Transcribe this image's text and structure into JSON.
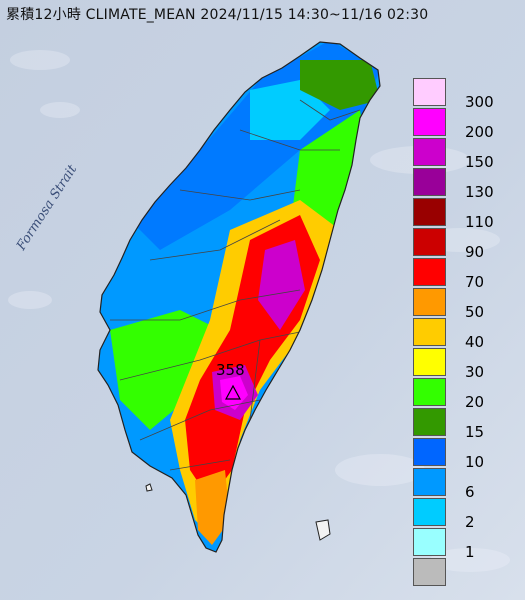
{
  "title": "累積12小時 CLIMATE_MEAN 2024/11/15 14:30~11/16 02:30",
  "map_label": "Formosa Strait",
  "peak_value": "358",
  "legend": [
    {
      "label": "300",
      "color": "#ffccff"
    },
    {
      "label": "200",
      "color": "#ff00ff"
    },
    {
      "label": "150",
      "color": "#cc00cc"
    },
    {
      "label": "130",
      "color": "#990099"
    },
    {
      "label": "110",
      "color": "#990000"
    },
    {
      "label": "90",
      "color": "#cc0000"
    },
    {
      "label": "70",
      "color": "#ff0000"
    },
    {
      "label": "50",
      "color": "#ff9900"
    },
    {
      "label": "40",
      "color": "#ffcc00"
    },
    {
      "label": "30",
      "color": "#ffff00"
    },
    {
      "label": "20",
      "color": "#33ff00"
    },
    {
      "label": "15",
      "color": "#339900"
    },
    {
      "label": "10",
      "color": "#0066ff"
    },
    {
      "label": "6",
      "color": "#0099ff"
    },
    {
      "label": "2",
      "color": "#00ccff"
    },
    {
      "label": "1",
      "color": "#99ffff"
    },
    {
      "label": "",
      "color": "#bbbbbb"
    }
  ]
}
